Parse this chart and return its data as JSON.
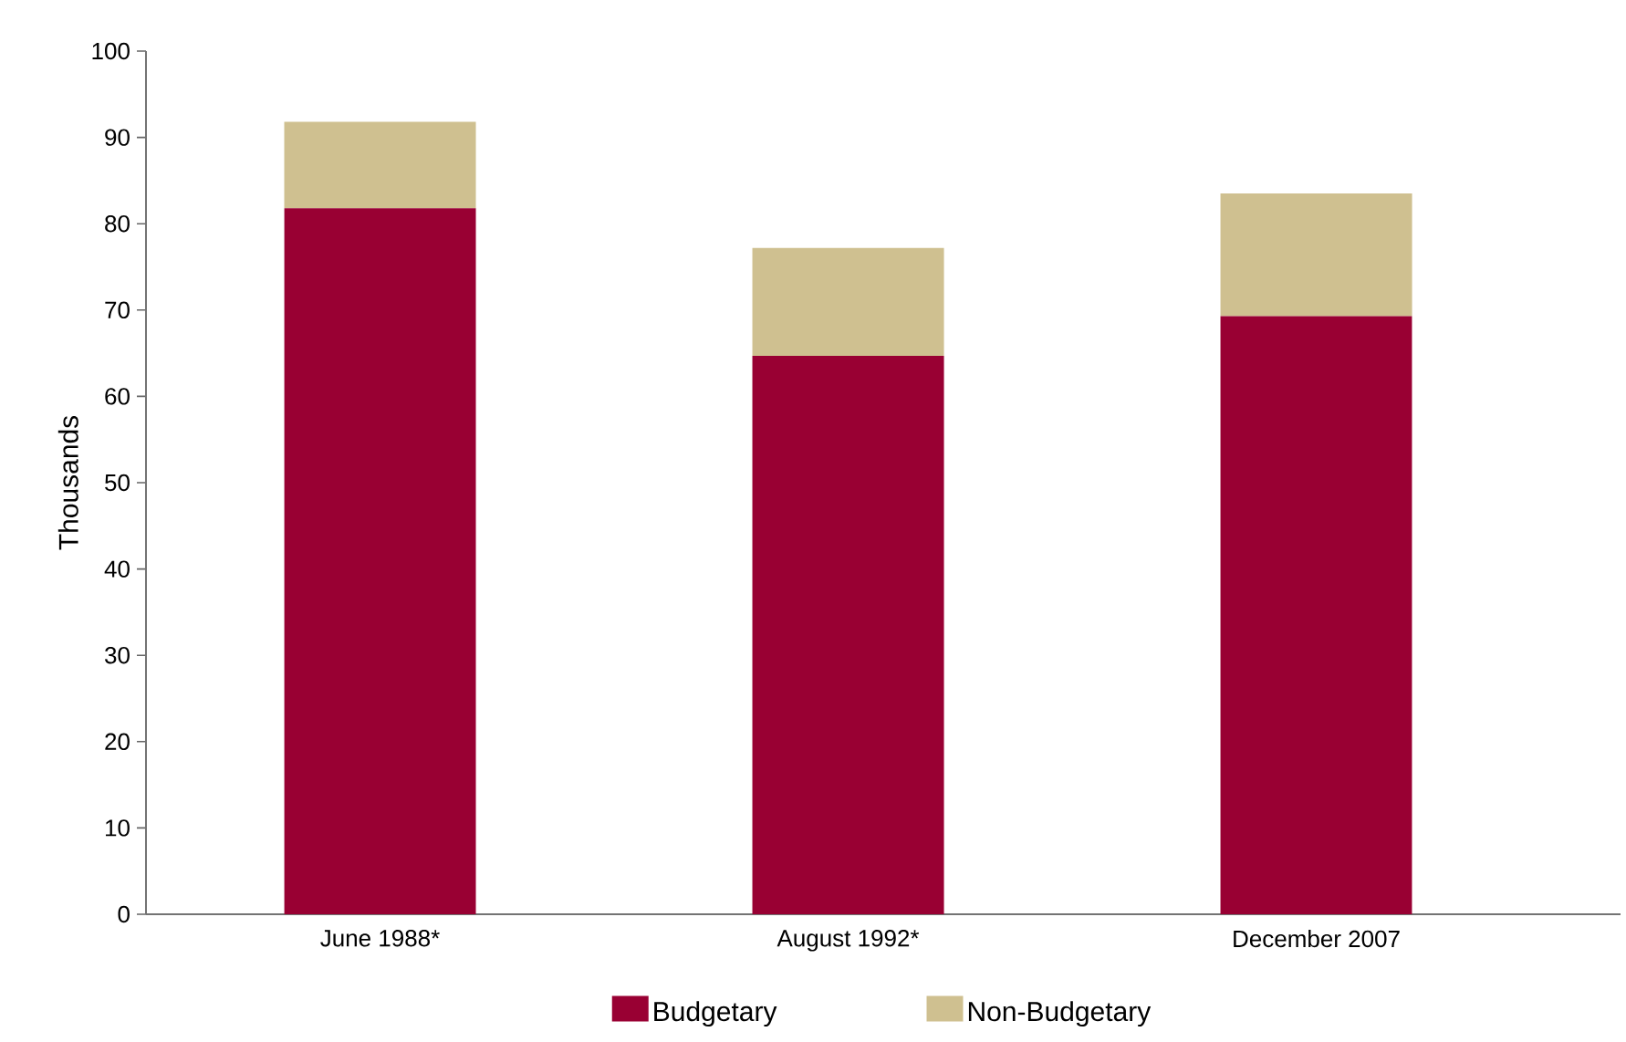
{
  "chart_data": {
    "type": "bar",
    "stacked": true,
    "ylabel": "Thousands",
    "categories": [
      "June 1988*",
      "August 1992*",
      "December 2007"
    ],
    "series": [
      {
        "name": "Budgetary",
        "color": "#990033",
        "values": [
          81.8,
          64.7,
          69.3
        ]
      },
      {
        "name": "Non-Budgetary",
        "color": "#cfc090",
        "values": [
          10.0,
          12.5,
          14.2
        ]
      }
    ],
    "ylim": [
      0,
      100
    ],
    "yticks": [
      0,
      10,
      20,
      30,
      40,
      50,
      60,
      70,
      80,
      90,
      100
    ],
    "grid": false,
    "legend": "bottom"
  }
}
